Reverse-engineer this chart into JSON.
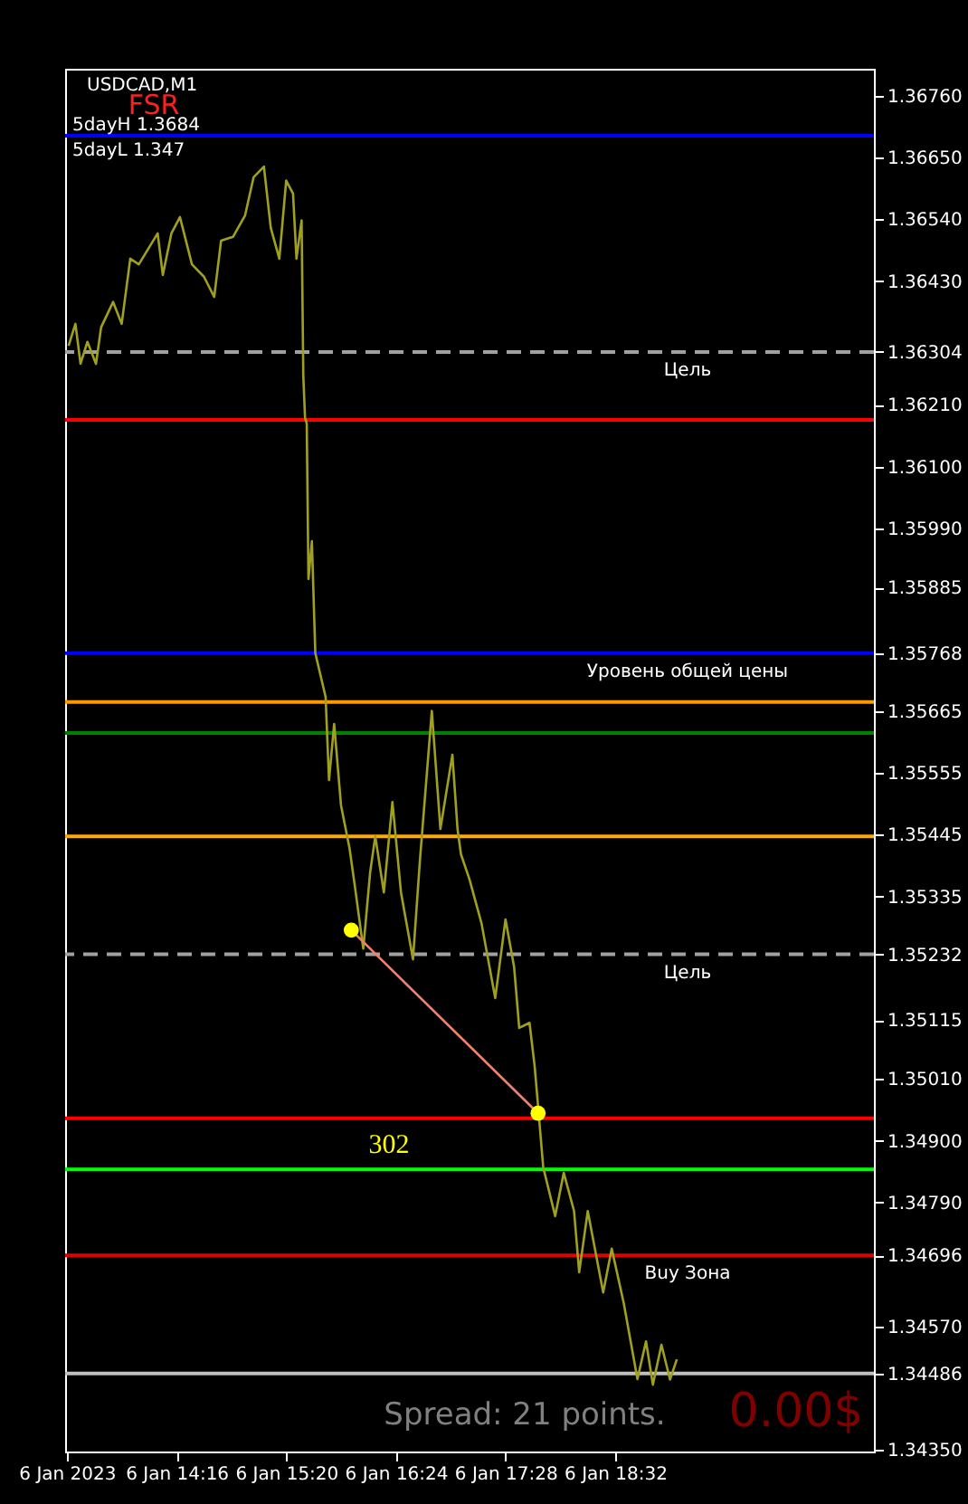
{
  "chart_data": {
    "type": "line",
    "title": "USDCAD,M1",
    "x": [
      "2023-01-06T13:13",
      "2023-01-06T13:17",
      "2023-01-06T13:20",
      "2023-01-06T13:24",
      "2023-01-06T13:29",
      "2023-01-06T13:32",
      "2023-01-06T13:39",
      "2023-01-06T13:44",
      "2023-01-06T13:49",
      "2023-01-06T13:54",
      "2023-01-06T14:05",
      "2023-01-06T14:08",
      "2023-01-06T14:13",
      "2023-01-06T14:18",
      "2023-01-06T14:25",
      "2023-01-06T14:32",
      "2023-01-06T14:38",
      "2023-01-06T14:42",
      "2023-01-06T14:49",
      "2023-01-06T14:56",
      "2023-01-06T15:01",
      "2023-01-06T15:07",
      "2023-01-06T15:11",
      "2023-01-06T15:16",
      "2023-01-06T15:20",
      "2023-01-06T15:24",
      "2023-01-06T15:26",
      "2023-01-06T15:29",
      "2023-01-06T15:30",
      "2023-01-06T15:31",
      "2023-01-06T15:32",
      "2023-01-06T15:33",
      "2023-01-06T15:35",
      "2023-01-06T15:37",
      "2023-01-06T15:43",
      "2023-01-06T15:45",
      "2023-01-06T15:48",
      "2023-01-06T15:52",
      "2023-01-06T15:57",
      "2023-01-06T16:00",
      "2023-01-06T16:05",
      "2023-01-06T16:09",
      "2023-01-06T16:12",
      "2023-01-06T16:17",
      "2023-01-06T16:22",
      "2023-01-06T16:27",
      "2023-01-06T16:34",
      "2023-01-06T16:38",
      "2023-01-06T16:45",
      "2023-01-06T16:50",
      "2023-01-06T16:57",
      "2023-01-06T17:00",
      "2023-01-06T17:02",
      "2023-01-06T17:07",
      "2023-01-06T17:14",
      "2023-01-06T17:22",
      "2023-01-06T17:28",
      "2023-01-06T17:33",
      "2023-01-06T17:36",
      "2023-01-06T17:42",
      "2023-01-06T17:45",
      "2023-01-06T17:47",
      "2023-01-06T17:50",
      "2023-01-06T17:57",
      "2023-01-06T18:02",
      "2023-01-06T18:08",
      "2023-01-06T18:11",
      "2023-01-06T18:16",
      "2023-01-06T18:25",
      "2023-01-06T18:30",
      "2023-01-06T18:37",
      "2023-01-06T18:45",
      "2023-01-06T18:50",
      "2023-01-06T18:54",
      "2023-01-06T18:59",
      "2023-01-06T19:04",
      "2023-01-06T19:08"
    ],
    "series": [
      {
        "type": "line",
        "color": "#a0a020",
        "values": [
          1.36315,
          1.36354,
          1.36283,
          1.36322,
          1.36283,
          1.36348,
          1.36393,
          1.36354,
          1.3647,
          1.3646,
          1.36515,
          1.36441,
          1.36515,
          1.36544,
          1.3646,
          1.36438,
          1.36402,
          1.36502,
          1.36509,
          1.36547,
          1.36615,
          1.36634,
          1.36525,
          1.3647,
          1.36609,
          1.36586,
          1.3647,
          1.36538,
          1.36261,
          1.36187,
          1.36177,
          1.359,
          1.35967,
          1.35768,
          1.3569,
          1.35542,
          1.35642,
          1.35497,
          1.3542,
          1.35355,
          1.35242,
          1.35378,
          1.35442,
          1.35342,
          1.35503,
          1.35342,
          1.35223,
          1.35397,
          1.35665,
          1.35455,
          1.35587,
          1.35455,
          1.3541,
          1.35365,
          1.35287,
          1.35154,
          1.35294,
          1.3521,
          1.35101,
          1.3511,
          1.35033,
          1.34962,
          1.34853,
          1.34766,
          1.34843,
          1.34775,
          1.34666,
          1.34775,
          1.3463,
          1.34708,
          1.34611,
          1.34476,
          1.34543,
          1.34466,
          1.34537,
          1.34475,
          1.34511
        ]
      },
      {
        "type": "line",
        "color": "#f08070",
        "x": [
          "2023-01-06T15:58",
          "2023-01-06T17:47"
        ],
        "values": [
          1.35275,
          1.34949
        ]
      },
      {
        "type": "scatter",
        "color": "#ffff00",
        "marker": "circle",
        "x": [
          "2023-01-06T15:58",
          "2023-01-06T17:47"
        ],
        "values": [
          1.35275,
          1.34949
        ]
      }
    ],
    "xlim": [
      "2023-01-06T13:11",
      "2023-01-06T21:03"
    ],
    "xticks": [
      {
        "value": "2023-01-06T13:12",
        "label": "6 Jan 2023"
      },
      {
        "value": "2023-01-06T14:16",
        "label": "6 Jan 14:16"
      },
      {
        "value": "2023-01-06T15:20",
        "label": "6 Jan 15:20"
      },
      {
        "value": "2023-01-06T16:24",
        "label": "6 Jan 16:24"
      },
      {
        "value": "2023-01-06T17:28",
        "label": "6 Jan 17:28"
      },
      {
        "value": "2023-01-06T18:32",
        "label": "6 Jan 18:32"
      }
    ],
    "ylim": [
      1.34347,
      1.36808
    ],
    "yticks": [
      {
        "value": 1.3676,
        "label": "1.36760"
      },
      {
        "value": 1.3665,
        "label": "1.36650"
      },
      {
        "value": 1.3654,
        "label": "1.36540"
      },
      {
        "value": 1.3643,
        "label": "1.36430"
      },
      1.36304,
      {
        "value": 1.3621,
        "label": "1.36210"
      },
      {
        "value": 1.361,
        "label": "1.36100"
      },
      {
        "value": 1.3599,
        "label": "1.35990"
      },
      1.35885,
      1.35768,
      1.35665,
      1.35555,
      1.35445,
      1.35335,
      1.35232,
      1.35115,
      {
        "value": 1.3501,
        "label": "1.35010"
      },
      {
        "value": 1.349,
        "label": "1.34900"
      },
      {
        "value": 1.3479,
        "label": "1.34790"
      },
      1.34696,
      {
        "value": 1.3457,
        "label": "1.34570"
      },
      1.34486,
      {
        "value": 1.3435,
        "label": "1.34350"
      }
    ],
    "ref_lines": [
      {
        "axis": "y",
        "value": 1.36689,
        "color": "#0000ff"
      },
      {
        "axis": "y",
        "value": 1.36304,
        "label": "Цель",
        "color": "#a0a0a0",
        "line_style": "dashed"
      },
      {
        "axis": "y",
        "value": 1.36183,
        "color": "#ff0000"
      },
      {
        "axis": "y",
        "value": 1.35768,
        "label": "Уровень общей цены",
        "color": "#0000ff"
      },
      {
        "axis": "y",
        "value": 1.35681,
        "color": "#ff9900"
      },
      {
        "axis": "y",
        "value": 1.35626,
        "color": "#008000"
      },
      {
        "axis": "y",
        "value": 1.35442,
        "color": "#ffaa00"
      },
      {
        "axis": "y",
        "value": 1.35232,
        "label": "Цель",
        "color": "#a0a0a0",
        "line_style": "dashed"
      },
      {
        "axis": "y",
        "value": 1.3494,
        "color": "#ff0000"
      },
      {
        "axis": "y",
        "value": 1.34849,
        "color": "#00ff00"
      },
      {
        "axis": "y",
        "value": 1.34696,
        "label": "Buy Зона",
        "color": "#e00000"
      },
      {
        "axis": "y",
        "value": 1.34486,
        "color": "#c0c0c0"
      }
    ],
    "annotations": [
      "FSR",
      "5dayH 1.3684",
      "5dayL 1.347",
      "302",
      "Spread: 21 points.",
      "0.00$"
    ],
    "grid": false
  }
}
